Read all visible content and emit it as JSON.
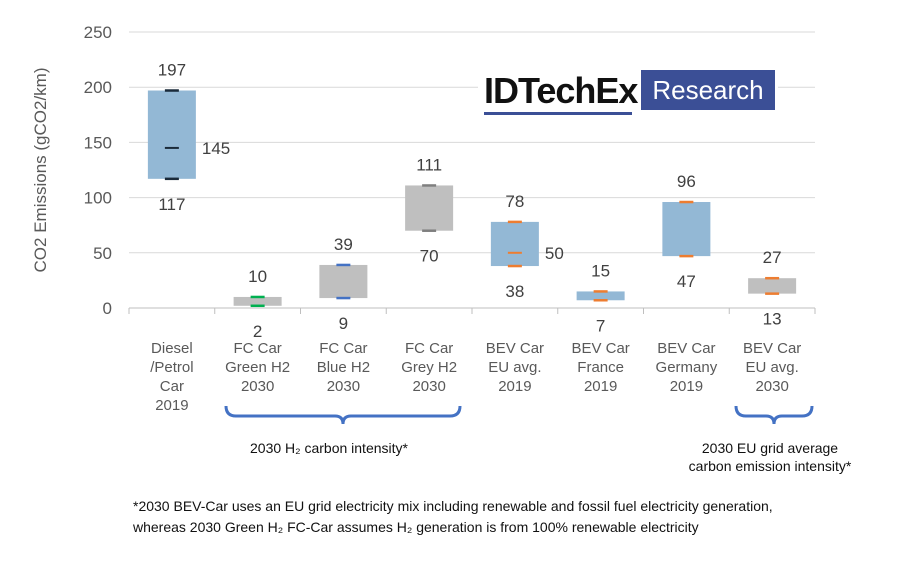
{
  "chart_data": {
    "type": "floating-bar",
    "ylabel": "CO2 Emissions (gCO2/km)",
    "ylim": [
      0,
      250
    ],
    "yticks": [
      0,
      50,
      100,
      150,
      200,
      250
    ],
    "grid": "horizontal",
    "categories": [
      [
        "Diesel",
        "/Petrol",
        "Car",
        "2019"
      ],
      [
        "FC Car",
        "Green H2",
        "2030"
      ],
      [
        "FC Car",
        "Blue H2",
        "2030"
      ],
      [
        "FC Car",
        "Grey H2",
        "2030"
      ],
      [
        "BEV Car",
        "EU avg.",
        "2019"
      ],
      [
        "BEV Car",
        "France",
        "2019"
      ],
      [
        "BEV Car",
        "Germany",
        "2019"
      ],
      [
        "BEV Car",
        "EU avg.",
        "2030"
      ]
    ],
    "low": [
      117,
      2,
      9,
      70,
      38,
      7,
      47,
      13
    ],
    "high": [
      197,
      10,
      39,
      111,
      78,
      15,
      96,
      27
    ],
    "mid": [
      145,
      null,
      null,
      null,
      50,
      null,
      null,
      null
    ],
    "box_colors": [
      "#93b8d5",
      "#bfbfbf",
      "#bfbfbf",
      "#bfbfbf",
      "#93b8d5",
      "#93b8d5",
      "#93b8d5",
      "#bfbfbf"
    ],
    "marker_colors": [
      "#1a2a3a",
      "#00b050",
      "#4472c4",
      "#7f7f7f",
      "#ed7d31",
      "#ed7d31",
      "#ed7d31",
      "#ed7d31"
    ]
  },
  "logo": {
    "name": "IDTechEx",
    "tag": "Research"
  },
  "brackets": {
    "h2": "2030 H₂ carbon intensity*",
    "eu": [
      "2030 EU grid average",
      "carbon emission intensity*"
    ]
  },
  "footnote": [
    "*2030 BEV-Car uses an EU grid electricity mix including renewable and fossil fuel electricity generation,",
    "whereas 2030 Green H₂ FC-Car assumes H₂ generation is from 100% renewable electricity"
  ]
}
